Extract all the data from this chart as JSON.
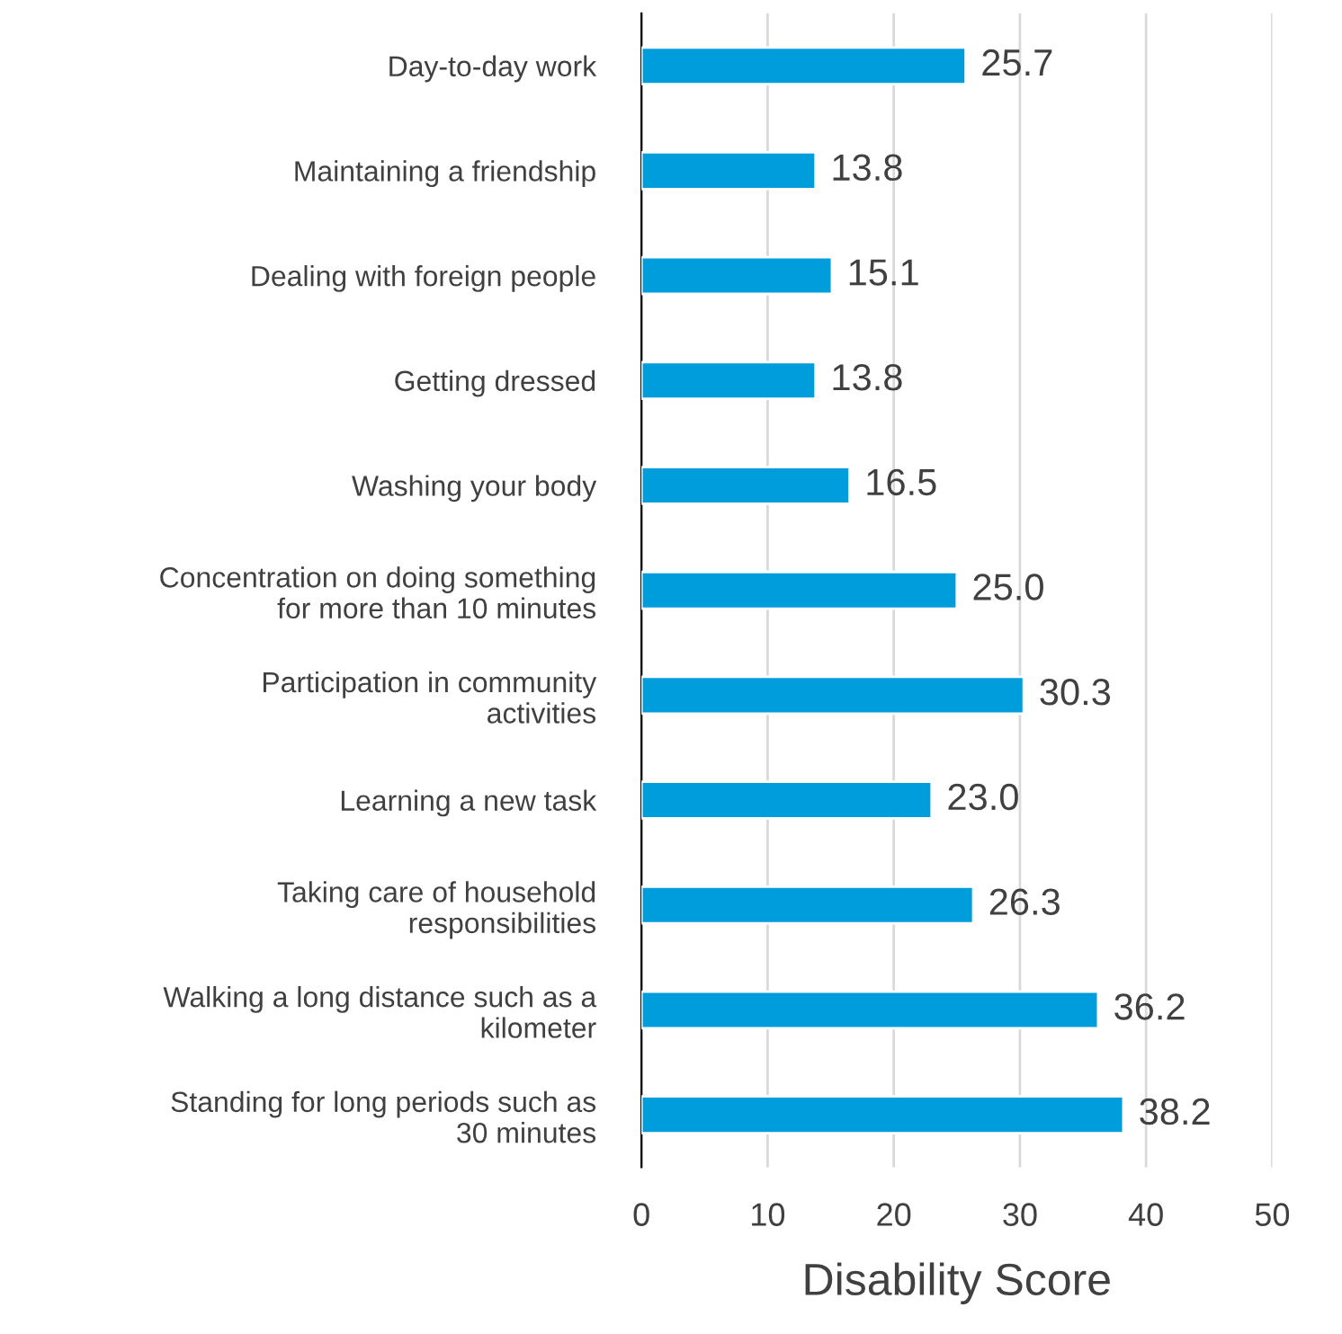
{
  "chart_data": {
    "type": "bar",
    "orientation": "horizontal",
    "xlabel": "Disability Score",
    "categories": [
      "Day-to-day work",
      "Maintaining a friendship",
      "Dealing with foreign people",
      "Getting dressed",
      "Washing your body",
      "Concentration on doing something\nfor more than 10 minutes",
      "Participation in community\nactivities",
      "Learning a new task",
      "Taking care of household\nresponsibilities",
      "Walking a long distance such as a\nkilometer",
      "Standing for long periods such as\n30 minutes"
    ],
    "values": [
      25.7,
      13.8,
      15.1,
      13.8,
      16.5,
      25.0,
      30.3,
      23.0,
      26.3,
      36.2,
      38.2
    ],
    "value_labels": [
      "25.7",
      "13.8",
      "15.1",
      "13.8",
      "16.5",
      "25.0",
      "30.3",
      "23.0",
      "26.3",
      "36.2",
      "38.2"
    ],
    "color": "#009ddc",
    "xlim": [
      0,
      50
    ],
    "xticks": [
      0,
      10,
      20,
      30,
      40,
      50
    ],
    "grid": "x"
  }
}
